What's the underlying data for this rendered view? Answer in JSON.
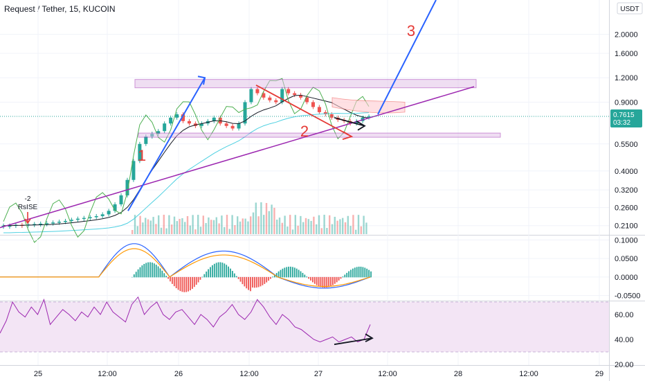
{
  "header": {
    "title": "Request / Tether, 15, KUCOIN",
    "currency_badge": "USDT"
  },
  "price_tag": {
    "price": "0.7615",
    "countdown": "03:32",
    "color": "#26a69a"
  },
  "colors": {
    "grid": "#f0f3fa",
    "candle_up": "#26a69a",
    "candle_down": "#ef5350",
    "purple": "#9c27b0",
    "blue_annotation": "#2962ff",
    "red_annotation": "#e53935",
    "rsi_band": "#f3e5f5",
    "green_line": "#4caf50",
    "macd_line": "#2962ff",
    "signal_line": "#ff9800"
  },
  "annotations": {
    "label_1": "1",
    "label_2": "2",
    "label_3": "3",
    "rsi_marker_value": "-2",
    "rsi_marker_text": "RsISE"
  },
  "chart_data": [
    {
      "type": "line",
      "name": "price",
      "y_scale": "log",
      "ylim": [
        0.19,
        3.0
      ],
      "y_ticks": [
        "2.0000",
        "1.6000",
        "1.2000",
        "0.9000",
        "0.5500",
        "0.4000",
        "0.3200",
        "0.2600",
        "0.2100"
      ],
      "y_tick_values": [
        2.0,
        1.6,
        1.2,
        0.9,
        0.55,
        0.4,
        0.32,
        0.26,
        0.21
      ],
      "x_ticks": [
        "25",
        "12:00",
        "26",
        "12:00",
        "27",
        "12:00",
        "28",
        "12:00",
        "29"
      ],
      "series": [
        {
          "close": [
            0.21,
            0.21,
            0.212,
            0.211,
            0.213,
            0.214,
            0.215,
            0.216,
            0.218,
            0.22,
            0.222,
            0.225,
            0.228,
            0.23,
            0.232,
            0.235,
            0.24,
            0.25,
            0.27,
            0.3,
            0.36,
            0.45,
            0.55,
            0.6,
            0.62,
            0.64,
            0.7,
            0.75,
            0.78,
            0.72,
            0.7,
            0.68,
            0.7,
            0.72,
            0.75,
            0.7,
            0.68,
            0.66,
            0.7,
            0.9,
            1.05,
            1.0,
            0.95,
            0.92,
            0.9,
            1.05,
            1.0,
            0.98,
            0.95,
            0.9,
            0.85,
            0.8,
            0.78,
            0.75,
            0.73,
            0.72,
            0.7,
            0.72,
            0.75,
            0.76
          ]
        }
      ]
    },
    {
      "type": "bar",
      "name": "MACD",
      "ylim": [
        -0.06,
        0.11
      ],
      "y_ticks": [
        "0.1000",
        "0.0500",
        "0.0000",
        "-0.0500"
      ],
      "y_tick_values": [
        0.1,
        0.05,
        0.0,
        -0.05
      ]
    },
    {
      "type": "line",
      "name": "RSI",
      "ylim": [
        20,
        70
      ],
      "y_ticks": [
        "60.00",
        "40.00",
        "20.00"
      ],
      "y_tick_values": [
        60,
        40,
        20
      ],
      "band": [
        30,
        70
      ],
      "series": [
        {
          "values": [
            45,
            55,
            70,
            62,
            58,
            66,
            60,
            72,
            52,
            58,
            64,
            60,
            55,
            62,
            58,
            66,
            60,
            70,
            62,
            58,
            54,
            68,
            74,
            60,
            66,
            70,
            60,
            56,
            62,
            64,
            58,
            52,
            60,
            56,
            50,
            58,
            62,
            68,
            60,
            56,
            62,
            72,
            66,
            58,
            52,
            60,
            56,
            50,
            48,
            44,
            40,
            38,
            40,
            42,
            38,
            40,
            42,
            38,
            40,
            52
          ]
        }
      ]
    }
  ]
}
